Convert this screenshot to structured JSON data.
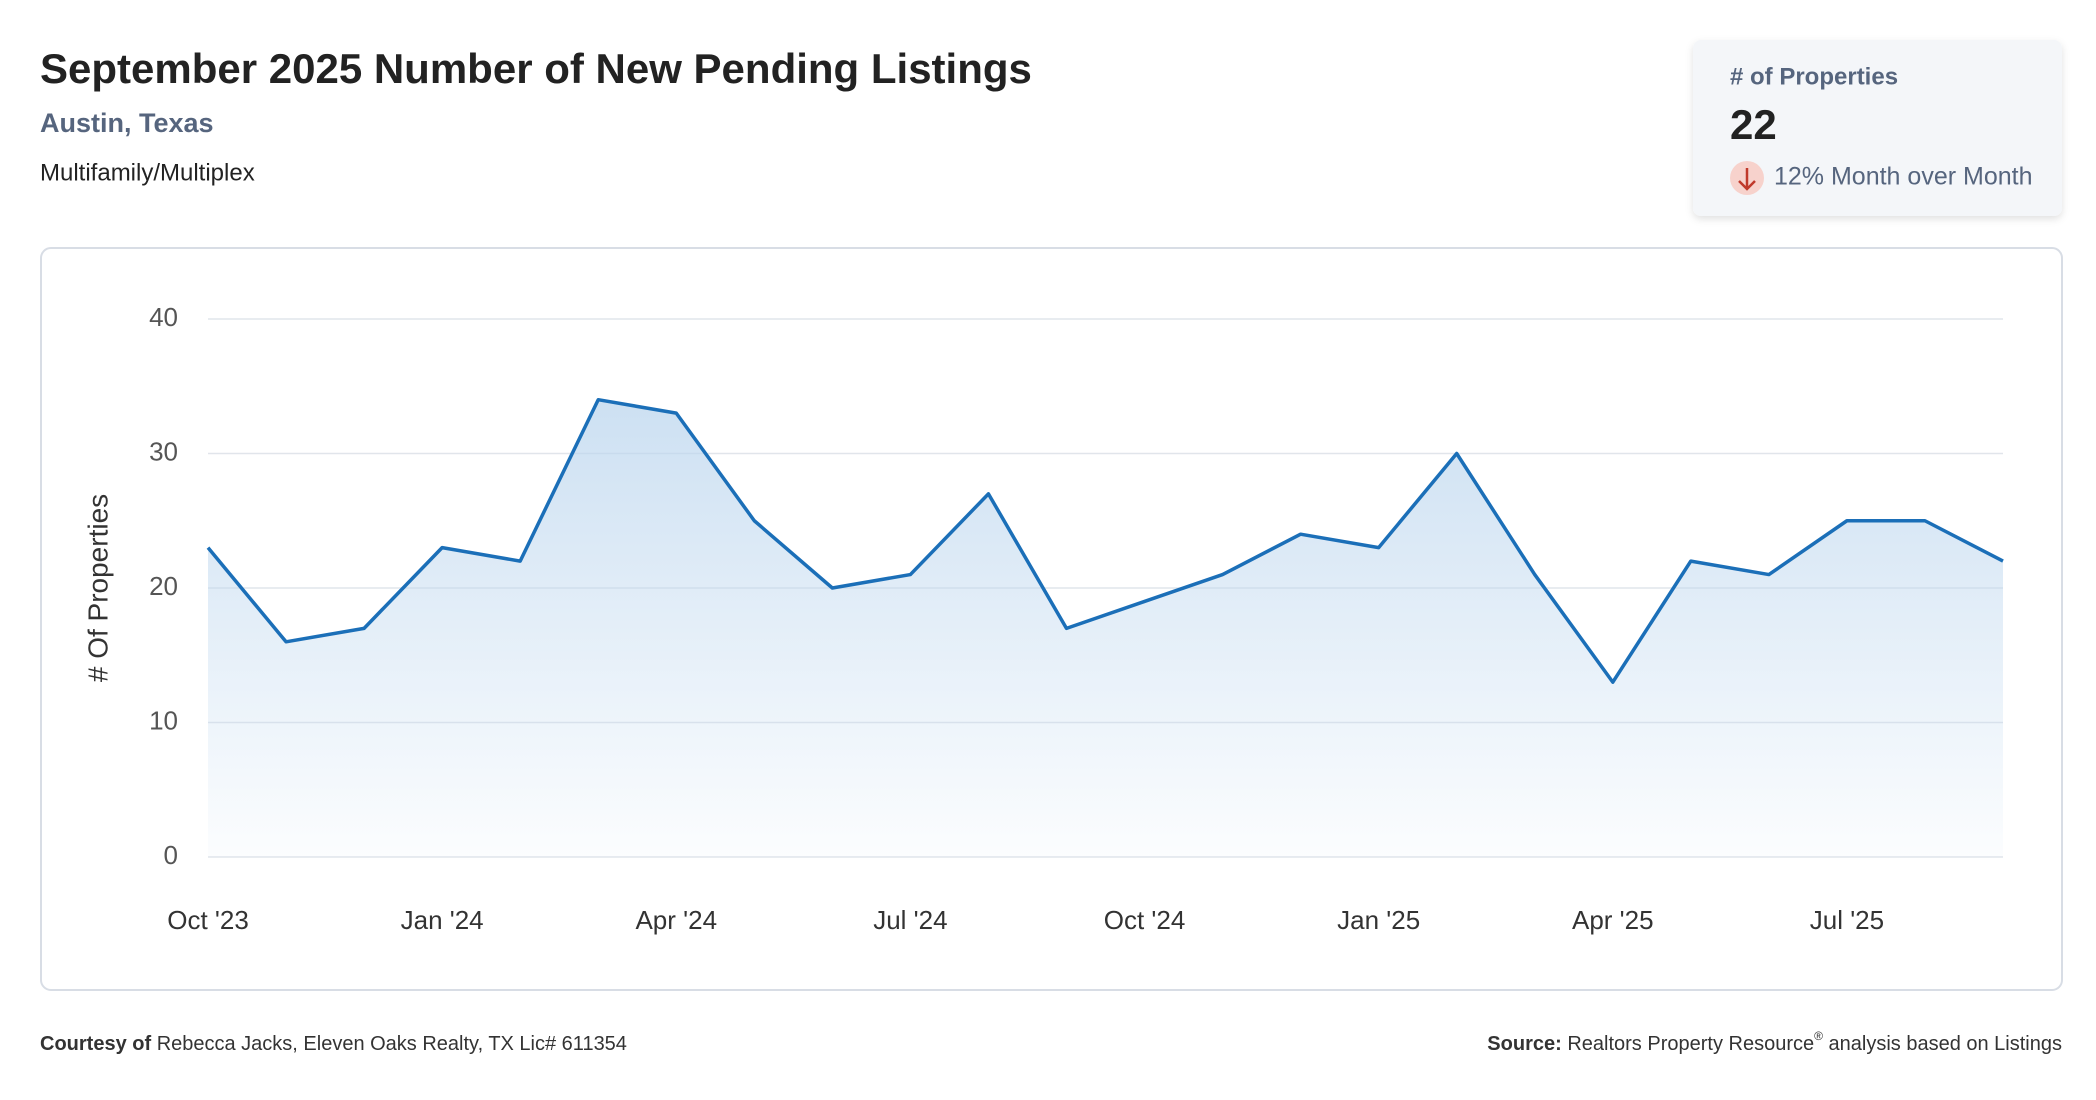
{
  "header": {
    "title": "September 2025 Number of New Pending Listings",
    "location": "Austin, Texas",
    "property_type": "Multifamily/Multiplex"
  },
  "kpi": {
    "label": "# of Properties",
    "value": 22,
    "change": "12% Month over Month"
  },
  "chart_data": {
    "type": "line",
    "y_label": "# Of Properties",
    "categories": [
      "Oct '23",
      null,
      null,
      "Jan '24",
      null,
      null,
      "Apr '24",
      null,
      null,
      "Jul '24",
      null,
      null,
      "Oct '24",
      null,
      null,
      "Jan '25",
      null,
      null,
      "Apr '25",
      null,
      null,
      "Jul '25",
      null,
      null
    ],
    "series": [
      {
        "name": "# of Properties",
        "color": "#1b6fb8",
        "values": [
          23,
          16,
          17,
          23,
          22,
          34,
          33,
          25,
          20,
          21,
          27,
          17,
          19,
          21,
          24,
          23,
          30,
          21,
          13,
          22,
          21,
          25,
          25,
          22
        ]
      }
    ],
    "ylim": [
      0,
      40
    ],
    "yticks": [
      0,
      10,
      20,
      30,
      40
    ],
    "grid": true,
    "area": true
  },
  "footer": {
    "courtesy_label": "Courtesy of",
    "courtesy": "Rebecca Jacks, Eleven Oaks Realty, TX Lic# 611354",
    "source_label": "Source:",
    "source": "Realtors Property Resource",
    "source_mark": "®",
    "source_rest": " analysis based on Listings"
  }
}
